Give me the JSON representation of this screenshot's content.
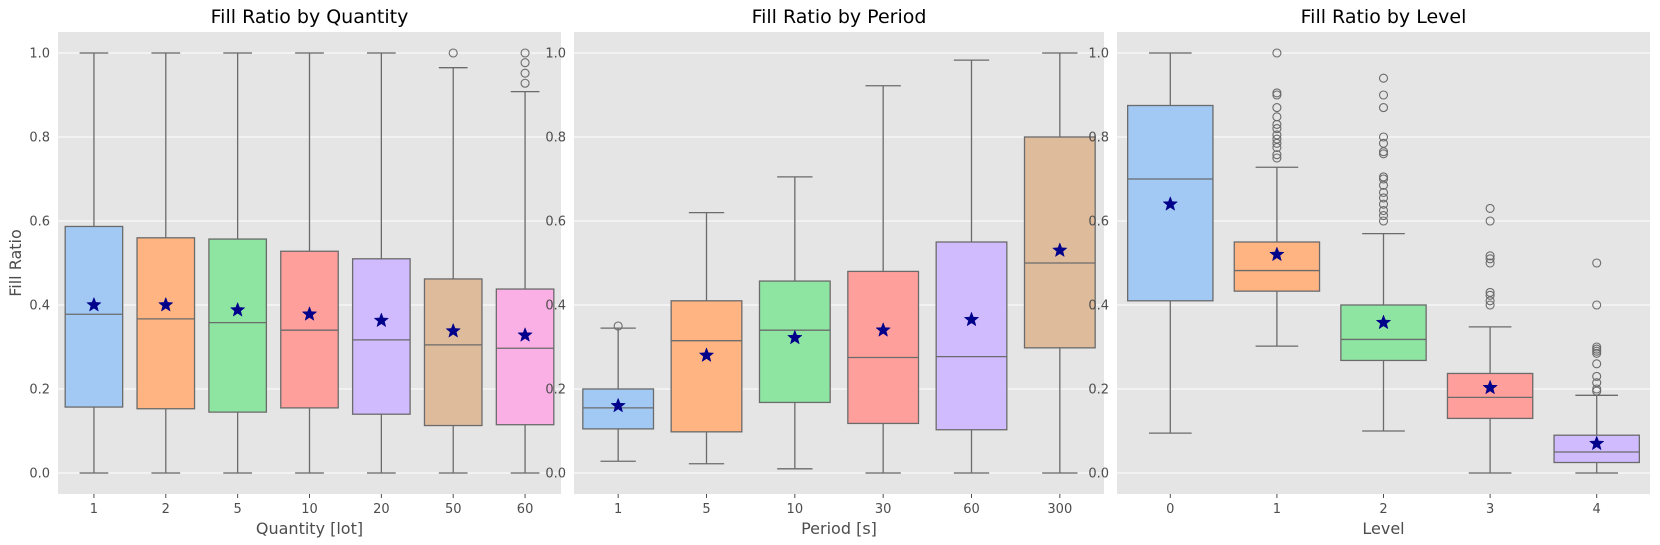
{
  "chart_data": [
    {
      "type": "box",
      "title": "Fill Ratio by Quantity",
      "xlabel": "Quantity [lot]",
      "ylabel": "Fill Ratio",
      "ylim": [
        -0.05,
        1.05
      ],
      "yticks": [
        "0.0",
        "0.2",
        "0.4",
        "0.6",
        "0.8",
        "1.0"
      ],
      "grid": true,
      "categories": [
        "1",
        "2",
        "5",
        "10",
        "20",
        "50",
        "60"
      ],
      "colors": [
        "#a1c9f4",
        "#ffb482",
        "#8de5a1",
        "#ff9f9b",
        "#d0bbff",
        "#debb9b",
        "#fab0e4"
      ],
      "boxes": [
        {
          "whislo": 0.0,
          "q1": 0.157,
          "median": 0.378,
          "q3": 0.587,
          "whishi": 1.0,
          "mean": 0.4,
          "fliers": []
        },
        {
          "whislo": 0.0,
          "q1": 0.153,
          "median": 0.367,
          "q3": 0.56,
          "whishi": 1.0,
          "mean": 0.4,
          "fliers": []
        },
        {
          "whislo": 0.0,
          "q1": 0.145,
          "median": 0.358,
          "q3": 0.557,
          "whishi": 1.0,
          "mean": 0.388,
          "fliers": []
        },
        {
          "whislo": 0.0,
          "q1": 0.155,
          "median": 0.34,
          "q3": 0.528,
          "whishi": 1.0,
          "mean": 0.378,
          "fliers": []
        },
        {
          "whislo": 0.0,
          "q1": 0.14,
          "median": 0.317,
          "q3": 0.51,
          "whishi": 1.0,
          "mean": 0.363,
          "fliers": []
        },
        {
          "whislo": 0.0,
          "q1": 0.113,
          "median": 0.305,
          "q3": 0.462,
          "whishi": 0.965,
          "mean": 0.338,
          "fliers": [
            1.0
          ]
        },
        {
          "whislo": 0.0,
          "q1": 0.115,
          "median": 0.297,
          "q3": 0.438,
          "whishi": 0.908,
          "mean": 0.328,
          "fliers": [
            0.928,
            0.952,
            0.977,
            1.0
          ]
        }
      ]
    },
    {
      "type": "box",
      "title": "Fill Ratio by Period",
      "xlabel": "Period [s]",
      "ylabel": "",
      "ylim": [
        -0.05,
        1.05
      ],
      "yticks": [
        "0.0",
        "0.2",
        "0.4",
        "0.6",
        "0.8",
        "1.0"
      ],
      "grid": true,
      "categories": [
        "1",
        "5",
        "10",
        "30",
        "60",
        "300"
      ],
      "colors": [
        "#a1c9f4",
        "#ffb482",
        "#8de5a1",
        "#ff9f9b",
        "#d0bbff",
        "#debb9b"
      ],
      "boxes": [
        {
          "whislo": 0.028,
          "q1": 0.105,
          "median": 0.155,
          "q3": 0.2,
          "whishi": 0.345,
          "mean": 0.16,
          "fliers": [
            0.35
          ]
        },
        {
          "whislo": 0.022,
          "q1": 0.098,
          "median": 0.315,
          "q3": 0.41,
          "whishi": 0.62,
          "mean": 0.28,
          "fliers": []
        },
        {
          "whislo": 0.01,
          "q1": 0.168,
          "median": 0.34,
          "q3": 0.457,
          "whishi": 0.705,
          "mean": 0.322,
          "fliers": []
        },
        {
          "whislo": 0.0,
          "q1": 0.118,
          "median": 0.275,
          "q3": 0.48,
          "whishi": 0.922,
          "mean": 0.34,
          "fliers": []
        },
        {
          "whislo": 0.0,
          "q1": 0.103,
          "median": 0.277,
          "q3": 0.55,
          "whishi": 0.983,
          "mean": 0.365,
          "fliers": []
        },
        {
          "whislo": 0.0,
          "q1": 0.298,
          "median": 0.5,
          "q3": 0.8,
          "whishi": 1.0,
          "mean": 0.53,
          "fliers": []
        }
      ]
    },
    {
      "type": "box",
      "title": "Fill Ratio by Level",
      "xlabel": "Level",
      "ylabel": "",
      "ylim": [
        -0.05,
        1.05
      ],
      "yticks": [
        "0.0",
        "0.2",
        "0.4",
        "0.6",
        "0.8",
        "1.0"
      ],
      "grid": true,
      "categories": [
        "0",
        "1",
        "2",
        "3",
        "4"
      ],
      "colors": [
        "#a1c9f4",
        "#ffb482",
        "#8de5a1",
        "#ff9f9b",
        "#d0bbff"
      ],
      "boxes": [
        {
          "whislo": 0.095,
          "q1": 0.41,
          "median": 0.7,
          "q3": 0.875,
          "whishi": 1.0,
          "mean": 0.64,
          "fliers": []
        },
        {
          "whislo": 0.302,
          "q1": 0.433,
          "median": 0.482,
          "q3": 0.55,
          "whishi": 0.728,
          "mean": 0.52,
          "fliers": [
            0.75,
            0.758,
            0.775,
            0.785,
            0.795,
            0.805,
            0.82,
            0.83,
            0.848,
            0.87,
            0.9,
            0.905,
            1.0
          ]
        },
        {
          "whislo": 0.1,
          "q1": 0.268,
          "median": 0.318,
          "q3": 0.4,
          "whishi": 0.57,
          "mean": 0.358,
          "fliers": [
            0.6,
            0.613,
            0.625,
            0.64,
            0.655,
            0.668,
            0.685,
            0.7,
            0.705,
            0.76,
            0.765,
            0.785,
            0.8,
            0.87,
            0.9,
            0.94
          ]
        },
        {
          "whislo": 0.0,
          "q1": 0.13,
          "median": 0.18,
          "q3": 0.237,
          "whishi": 0.348,
          "mean": 0.203,
          "fliers": [
            0.4,
            0.41,
            0.423,
            0.43,
            0.5,
            0.51,
            0.517,
            0.6,
            0.63
          ]
        },
        {
          "whislo": 0.0,
          "q1": 0.025,
          "median": 0.05,
          "q3": 0.09,
          "whishi": 0.185,
          "mean": 0.07,
          "fliers": [
            0.195,
            0.2,
            0.215,
            0.23,
            0.26,
            0.285,
            0.29,
            0.295,
            0.3,
            0.4,
            0.5
          ]
        }
      ]
    }
  ]
}
